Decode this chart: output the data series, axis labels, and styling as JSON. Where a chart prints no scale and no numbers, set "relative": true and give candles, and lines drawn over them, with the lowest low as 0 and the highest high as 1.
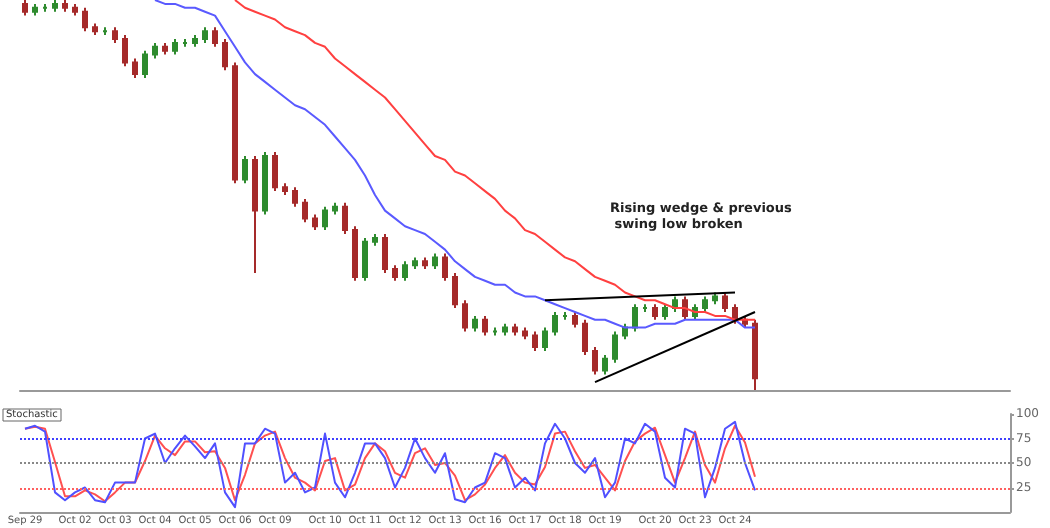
{
  "chart_data": [
    {
      "type": "candlestick",
      "relative": true,
      "grid": false,
      "categories": [
        null,
        null,
        null,
        null,
        null,
        null,
        null,
        null,
        null,
        null,
        null,
        null,
        null,
        null,
        null,
        null,
        null,
        null,
        null,
        null,
        null,
        null,
        null,
        null,
        null,
        null,
        null,
        null,
        null,
        null,
        null,
        null,
        null,
        null,
        null,
        null,
        null,
        null,
        null,
        null,
        null,
        null,
        null,
        null,
        null,
        null,
        null,
        null,
        null,
        null,
        null,
        null,
        null,
        null,
        null,
        null,
        null,
        null,
        null,
        null,
        null,
        null,
        null,
        null,
        null,
        null,
        null,
        null,
        null,
        null,
        null,
        null,
        null,
        null
      ],
      "annotations": [
        "Rising wedge & previous swing low broken"
      ],
      "series": [
        {
          "ohlc": [
            [
              0.99,
              1,
              0.96,
              0.97
            ],
            [
              0.97,
              0.99,
              0.96,
              0.98
            ],
            [
              0.98,
              0.99,
              0.97,
              0.98
            ],
            [
              0.98,
              1.0,
              0.97,
              0.99
            ],
            [
              0.99,
              1.0,
              0.97,
              0.98
            ],
            [
              0.98,
              0.99,
              0.96,
              0.97
            ],
            [
              0.97,
              0.98,
              0.92,
              0.93
            ],
            [
              0.93,
              0.94,
              0.91,
              0.92
            ],
            [
              0.92,
              0.93,
              0.91,
              0.92
            ],
            [
              0.92,
              0.93,
              0.89,
              0.9
            ],
            [
              0.9,
              0.91,
              0.83,
              0.84
            ],
            [
              0.84,
              0.85,
              0.8,
              0.81
            ],
            [
              0.81,
              0.87,
              0.8,
              0.86
            ],
            [
              0.86,
              0.89,
              0.85,
              0.88
            ],
            [
              0.88,
              0.89,
              0.86,
              0.87
            ],
            [
              0.87,
              0.9,
              0.86,
              0.89
            ],
            [
              0.89,
              0.9,
              0.88,
              0.89
            ],
            [
              0.89,
              0.91,
              0.88,
              0.9
            ],
            [
              0.9,
              0.93,
              0.89,
              0.92
            ],
            [
              0.92,
              0.93,
              0.88,
              0.89
            ],
            [
              0.89,
              0.9,
              0.82,
              0.83
            ],
            [
              0.83,
              0.84,
              0.53,
              0.54
            ],
            [
              0.54,
              0.6,
              0.53,
              0.59
            ],
            [
              0.59,
              0.6,
              0.3,
              0.46
            ],
            [
              0.46,
              0.61,
              0.45,
              0.6
            ],
            [
              0.6,
              0.61,
              0.51,
              0.52
            ],
            [
              0.52,
              0.53,
              0.5,
              0.51
            ],
            [
              0.51,
              0.52,
              0.47,
              0.48
            ],
            [
              0.48,
              0.49,
              0.43,
              0.44
            ],
            [
              0.44,
              0.45,
              0.41,
              0.42
            ],
            [
              0.42,
              0.47,
              0.41,
              0.46
            ],
            [
              0.46,
              0.48,
              0.45,
              0.47
            ],
            [
              0.47,
              0.48,
              0.4,
              0.41
            ],
            [
              0.41,
              0.42,
              0.28,
              0.29
            ],
            [
              0.29,
              0.39,
              0.28,
              0.38
            ],
            [
              0.38,
              0.4,
              0.37,
              0.39
            ],
            [
              0.39,
              0.4,
              0.3,
              0.31
            ],
            [
              0.31,
              0.32,
              0.28,
              0.29
            ],
            [
              0.29,
              0.33,
              0.28,
              0.32
            ],
            [
              0.32,
              0.34,
              0.31,
              0.33
            ],
            [
              0.33,
              0.34,
              0.31,
              0.32
            ],
            [
              0.32,
              0.35,
              0.31,
              0.34
            ],
            [
              0.34,
              0.35,
              0.28,
              0.29
            ],
            [
              0.29,
              0.3,
              0.21,
              0.22
            ],
            [
              0.22,
              0.23,
              0.15,
              0.16
            ],
            [
              0.16,
              0.19,
              0.15,
              0.18
            ],
            [
              0.18,
              0.19,
              0.14,
              0.15
            ],
            [
              0.15,
              0.16,
              0.14,
              0.15
            ],
            [
              0.15,
              0.17,
              0.14,
              0.16
            ],
            [
              0.16,
              0.17,
              0.14,
              0.15
            ],
            [
              0.15,
              0.16,
              0.13,
              0.14
            ],
            [
              0.14,
              0.15,
              0.1,
              0.11
            ],
            [
              0.11,
              0.16,
              0.1,
              0.15
            ],
            [
              0.15,
              0.2,
              0.14,
              0.19
            ],
            [
              0.19,
              0.2,
              0.18,
              0.19
            ],
            [
              0.19,
              0.2,
              0.16,
              0.17
            ],
            [
              0.17,
              0.18,
              0.09,
              0.1
            ],
            [
              0.1,
              0.11,
              0.04,
              0.05
            ],
            [
              0.05,
              0.09,
              0.04,
              0.08
            ],
            [
              0.08,
              0.15,
              0.07,
              0.14
            ],
            [
              0.14,
              0.17,
              0.13,
              0.16
            ],
            [
              0.16,
              0.22,
              0.15,
              0.21
            ],
            [
              0.21,
              0.22,
              0.2,
              0.21
            ],
            [
              0.21,
              0.22,
              0.18,
              0.19
            ],
            [
              0.19,
              0.22,
              0.18,
              0.21
            ],
            [
              0.21,
              0.24,
              0.2,
              0.23
            ],
            [
              0.23,
              0.24,
              0.18,
              0.19
            ],
            [
              0.19,
              0.22,
              0.18,
              0.21
            ],
            [
              0.21,
              0.24,
              0.2,
              0.23
            ],
            [
              0.23,
              0.25,
              0.22,
              0.24
            ],
            [
              0.24,
              0.25,
              0.2,
              0.21
            ],
            [
              0.21,
              0.22,
              0.17,
              0.18
            ],
            [
              0.18,
              0.19,
              0.16,
              0.17
            ],
            [
              0.17,
              0.18,
              0,
              0.03
            ]
          ],
          "colors": [
            "#a52a2a",
            "#2e8b2e",
            "#2e8b2e",
            "#2e8b2e",
            "#a52a2a",
            "#a52a2a",
            "#a52a2a",
            "#a52a2a",
            "#2e8b2e",
            "#a52a2a",
            "#a52a2a",
            "#a52a2a",
            "#2e8b2e",
            "#2e8b2e",
            "#a52a2a",
            "#2e8b2e",
            "#2e8b2e",
            "#2e8b2e",
            "#2e8b2e",
            "#a52a2a",
            "#a52a2a",
            "#a52a2a",
            "#2e8b2e",
            "#a52a2a",
            "#2e8b2e",
            "#a52a2a",
            "#a52a2a",
            "#a52a2a",
            "#a52a2a",
            "#a52a2a",
            "#2e8b2e",
            "#2e8b2e",
            "#a52a2a",
            "#a52a2a",
            "#2e8b2e",
            "#2e8b2e",
            "#a52a2a",
            "#a52a2a",
            "#2e8b2e",
            "#2e8b2e",
            "#a52a2a",
            "#2e8b2e",
            "#a52a2a",
            "#a52a2a",
            "#a52a2a",
            "#2e8b2e",
            "#a52a2a",
            "#2e8b2e",
            "#2e8b2e",
            "#a52a2a",
            "#a52a2a",
            "#a52a2a",
            "#2e8b2e",
            "#2e8b2e",
            "#2e8b2e",
            "#a52a2a",
            "#a52a2a",
            "#a52a2a",
            "#2e8b2e",
            "#2e8b2e",
            "#2e8b2e",
            "#2e8b2e",
            "#2e8b2e",
            "#a52a2a",
            "#2e8b2e",
            "#2e8b2e",
            "#a52a2a",
            "#2e8b2e",
            "#2e8b2e",
            "#2e8b2e",
            "#a52a2a",
            "#a52a2a",
            "#a52a2a",
            "#a52a2a"
          ]
        },
        {
          "type": "line",
          "color": "#5a5aff",
          "values": [
            null,
            null,
            null,
            null,
            null,
            null,
            null,
            null,
            null,
            null,
            null,
            null,
            null,
            1.0,
            0.99,
            0.99,
            0.98,
            0.98,
            0.97,
            0.96,
            0.92,
            0.88,
            0.84,
            0.81,
            0.79,
            0.77,
            0.75,
            0.73,
            0.72,
            0.7,
            0.68,
            0.65,
            0.62,
            0.59,
            0.55,
            0.5,
            0.46,
            0.44,
            0.42,
            0.41,
            0.4,
            0.38,
            0.36,
            0.33,
            0.31,
            0.29,
            0.28,
            0.27,
            0.27,
            0.25,
            0.24,
            0.24,
            0.23,
            0.22,
            0.21,
            0.2,
            0.19,
            0.18,
            0.18,
            0.17,
            0.16,
            0.16,
            0.16,
            0.17,
            0.17,
            0.17,
            0.18,
            0.18,
            0.18,
            0.18,
            0.18,
            0.18,
            0.16,
            0.16
          ]
        },
        {
          "type": "line",
          "color": "#ff4040",
          "values": [
            null,
            null,
            null,
            null,
            null,
            null,
            null,
            null,
            null,
            null,
            null,
            null,
            null,
            null,
            null,
            null,
            null,
            null,
            null,
            null,
            null,
            1.0,
            0.98,
            0.97,
            0.96,
            0.95,
            0.93,
            0.92,
            0.91,
            0.89,
            0.88,
            0.85,
            0.83,
            0.81,
            0.79,
            0.77,
            0.75,
            0.72,
            0.69,
            0.66,
            0.63,
            0.6,
            0.59,
            0.56,
            0.55,
            0.53,
            0.51,
            0.49,
            0.46,
            0.44,
            0.41,
            0.4,
            0.38,
            0.36,
            0.34,
            0.33,
            0.31,
            0.29,
            0.28,
            0.27,
            0.25,
            0.24,
            0.23,
            0.23,
            0.22,
            0.21,
            0.21,
            0.2,
            0.2,
            0.19,
            0.19,
            0.18,
            0.18,
            0.18
          ]
        },
        {
          "type": "line",
          "color": "#000000",
          "values": [
            null,
            null,
            null,
            null,
            null,
            null,
            null,
            null,
            null,
            null,
            null,
            null,
            null,
            null,
            null,
            null,
            null,
            null,
            null,
            null,
            null,
            null,
            null,
            null,
            null,
            null,
            null,
            null,
            null,
            null,
            null,
            null,
            null,
            null,
            null,
            null,
            null,
            null,
            null,
            null,
            null,
            null,
            null,
            null,
            null,
            null,
            null,
            null,
            null,
            null,
            null,
            null,
            0.23,
            null,
            null,
            null,
            null,
            null,
            null,
            null,
            null,
            null,
            null,
            null,
            null,
            null,
            null,
            null,
            null,
            null,
            null,
            0.25,
            null,
            null
          ]
        },
        {
          "type": "line",
          "color": "#000000",
          "values": [
            null,
            null,
            null,
            null,
            null,
            null,
            null,
            null,
            null,
            null,
            null,
            null,
            null,
            null,
            null,
            null,
            null,
            null,
            null,
            null,
            null,
            null,
            null,
            null,
            null,
            null,
            null,
            null,
            null,
            null,
            null,
            null,
            null,
            null,
            null,
            null,
            null,
            null,
            null,
            null,
            null,
            null,
            null,
            null,
            null,
            null,
            null,
            null,
            null,
            null,
            null,
            null,
            null,
            null,
            null,
            null,
            null,
            0.02,
            null,
            null,
            null,
            null,
            null,
            null,
            null,
            null,
            null,
            null,
            null,
            null,
            null,
            null,
            null,
            0.2
          ]
        }
      ]
    },
    {
      "type": "line",
      "title": "Stochastic",
      "marker": "none",
      "grid": false,
      "ylim": [
        0,
        100
      ],
      "yticks": [
        25,
        50,
        75,
        100
      ],
      "categories": [
        "Sep 29",
        null,
        null,
        null,
        null,
        "Oct 02",
        null,
        null,
        null,
        "Oct 03",
        null,
        null,
        null,
        "Oct 04",
        null,
        null,
        null,
        "Oct 05",
        null,
        null,
        null,
        "Oct 06",
        null,
        null,
        null,
        "Oct 09",
        null,
        null,
        null,
        null,
        "Oct 10",
        null,
        null,
        null,
        "Oct 11",
        null,
        null,
        null,
        "Oct 12",
        null,
        null,
        null,
        "Oct 13",
        null,
        null,
        null,
        "Oct 16",
        null,
        null,
        null,
        "Oct 17",
        null,
        null,
        null,
        "Oct 18",
        null,
        null,
        null,
        "Oct 19",
        null,
        null,
        null,
        null,
        "Oct 20",
        null,
        null,
        null,
        "Oct 23",
        null,
        null,
        null,
        "Oct 24",
        null,
        null
      ],
      "ref_lines": [
        {
          "axis": "y",
          "value": 75,
          "color": "#4040ff",
          "line_style": "dotted"
        },
        {
          "axis": "y",
          "value": 50,
          "color": "#888888",
          "line_style": "dotted"
        },
        {
          "axis": "y",
          "value": 25,
          "color": "#ff6060",
          "line_style": "dotted"
        }
      ],
      "series": [
        {
          "color": "#ff5050",
          "values": [
            85,
            87,
            85,
            51,
            16,
            16,
            22,
            18,
            11,
            20,
            30,
            30,
            52,
            78,
            65,
            58,
            72,
            72,
            61,
            62,
            45,
            12,
            38,
            70,
            78,
            82,
            55,
            35,
            30,
            22,
            52,
            55,
            22,
            28,
            55,
            70,
            62,
            40,
            35,
            60,
            65,
            48,
            50,
            37,
            12,
            18,
            28,
            45,
            58,
            40,
            30,
            28,
            46,
            80,
            82,
            62,
            45,
            48,
            35,
            22,
            52,
            72,
            80,
            86,
            58,
            30,
            55,
            82,
            48,
            30,
            65,
            88,
            71,
            36
          ]
        },
        {
          "color": "#5050ff",
          "values": [
            85,
            88,
            82,
            20,
            12,
            20,
            25,
            12,
            10,
            30,
            30,
            30,
            75,
            80,
            50,
            65,
            78,
            67,
            55,
            70,
            20,
            5,
            70,
            70,
            85,
            80,
            30,
            40,
            20,
            25,
            80,
            30,
            15,
            40,
            70,
            70,
            55,
            25,
            45,
            75,
            55,
            40,
            60,
            13,
            10,
            25,
            30,
            60,
            55,
            25,
            35,
            22,
            70,
            90,
            75,
            50,
            40,
            55,
            15,
            30,
            75,
            70,
            90,
            82,
            35,
            25,
            85,
            80,
            15,
            45,
            85,
            92,
            50,
            22
          ]
        }
      ]
    }
  ]
}
